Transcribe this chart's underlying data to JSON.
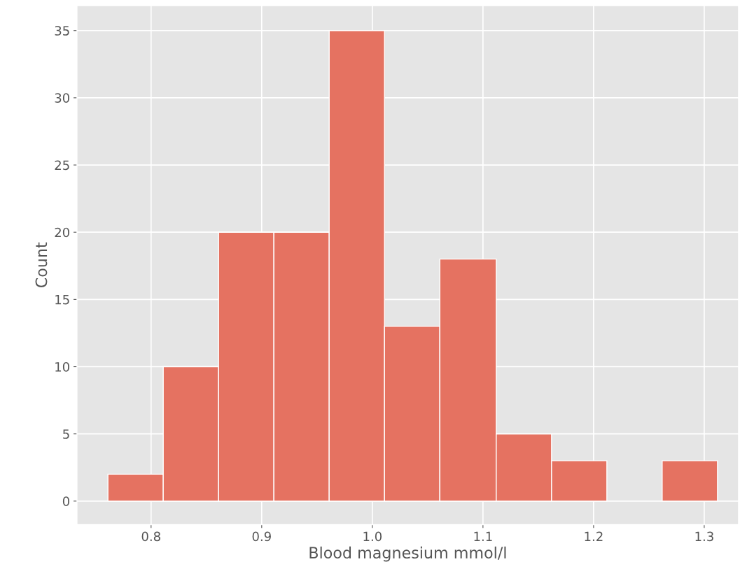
{
  "chart_data": {
    "type": "histogram",
    "xlabel": "Blood magnesium mmol/l",
    "ylabel": "Count",
    "bins": [
      0.761,
      0.811,
      0.861,
      0.911,
      0.961,
      1.011,
      1.061,
      1.112,
      1.162,
      1.212,
      1.262,
      1.312
    ],
    "values": [
      2,
      10,
      20,
      20,
      35,
      13,
      18,
      5,
      3,
      0,
      3
    ],
    "color": "#e57261",
    "xlim": [
      0.733,
      1.331
    ],
    "xticks": [
      {
        "value": 0.8,
        "label": "0.8"
      },
      {
        "value": 0.9,
        "label": "0.9"
      },
      {
        "value": 1.0,
        "label": "1.0"
      },
      {
        "value": 1.1,
        "label": "1.1"
      },
      {
        "value": 1.2,
        "label": "1.2"
      },
      {
        "value": 1.3,
        "label": "1.3"
      }
    ],
    "ylim": [
      -1.75,
      36.85
    ],
    "yticks": [
      0,
      5,
      10,
      15,
      20,
      25,
      30,
      35
    ],
    "grid": true
  }
}
